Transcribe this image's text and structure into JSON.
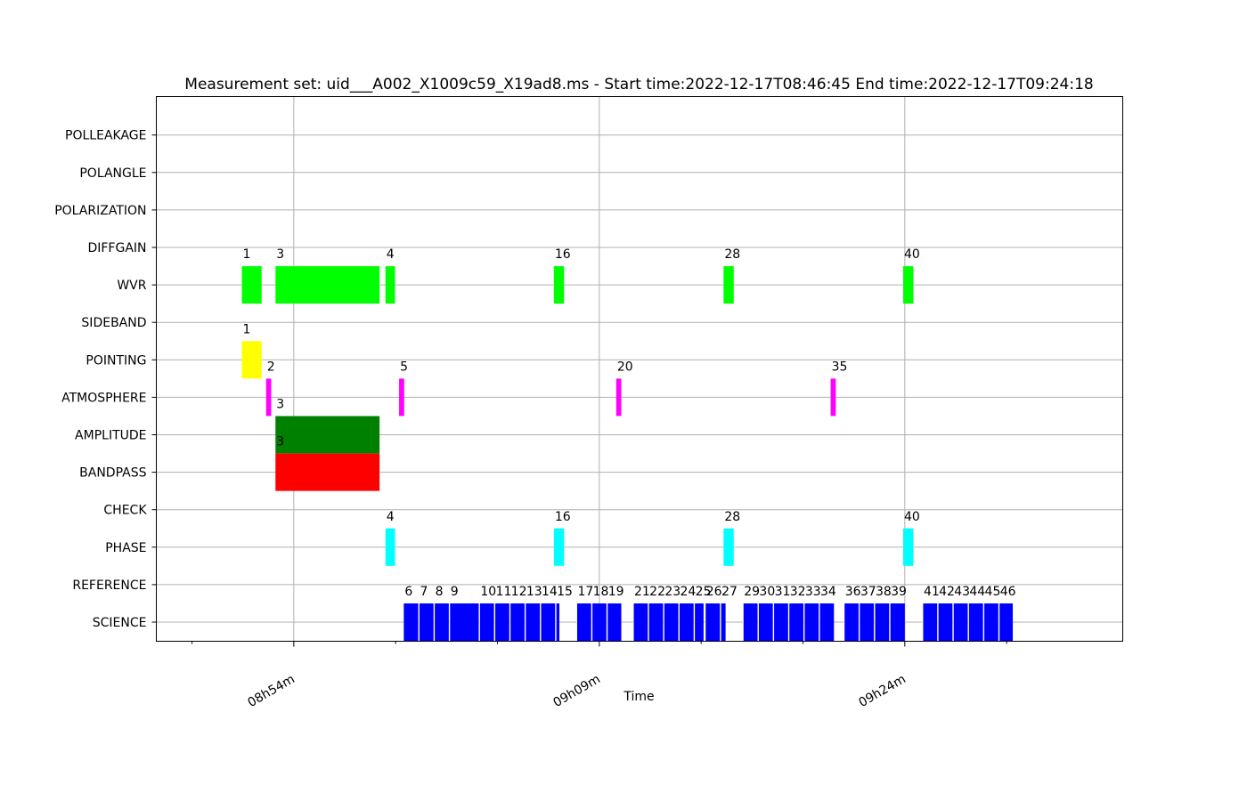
{
  "chart_data": {
    "type": "timeline",
    "title": "Measurement set: uid___A002_X1009c59_X19ad8.ms - Start time:2022-12-17T08:46:45 End time:2022-12-17T09:24:18",
    "xlabel": "Time",
    "ylabel": "",
    "grid": true,
    "x_ticks_minutes": [
      54,
      69,
      84
    ],
    "x_tick_labels": [
      "08h54m",
      "09h09m",
      "09h24m"
    ],
    "x_minor_ticks_minutes": [
      49,
      59,
      64,
      74,
      79,
      89
    ],
    "categories": [
      "SCIENCE",
      "REFERENCE",
      "PHASE",
      "CHECK",
      "BANDPASS",
      "AMPLITUDE",
      "ATMOSPHERE",
      "POINTING",
      "SIDEBAND",
      "WVR",
      "DIFFGAIN",
      "POLARIZATION",
      "POLANGLE",
      "POLLEAKAGE"
    ],
    "colors": {
      "WVR": "#00ff00",
      "POINTING": "#ffff00",
      "ATMOSPHERE": "#ff00ff",
      "AMPLITUDE": "#008000",
      "BANDPASS": "#ff0000",
      "PHASE": "#00ffff",
      "SCIENCE": "#0000ff"
    },
    "intervals": [
      {
        "intent": "WVR",
        "label": "1",
        "start": 51.45,
        "end": 52.42
      },
      {
        "intent": "WVR",
        "label": "3",
        "start": 53.1,
        "end": 58.21
      },
      {
        "intent": "WVR",
        "label": "4",
        "start": 58.5,
        "end": 58.97
      },
      {
        "intent": "WVR",
        "label": "16",
        "start": 66.77,
        "end": 67.27
      },
      {
        "intent": "WVR",
        "label": "28",
        "start": 75.1,
        "end": 75.6
      },
      {
        "intent": "WVR",
        "label": "40",
        "start": 83.92,
        "end": 84.42
      },
      {
        "intent": "POINTING",
        "label": "1",
        "start": 51.45,
        "end": 52.42
      },
      {
        "intent": "ATMOSPHERE",
        "label": "2",
        "start": 52.64,
        "end": 52.89
      },
      {
        "intent": "ATMOSPHERE",
        "label": "5",
        "start": 59.17,
        "end": 59.42
      },
      {
        "intent": "ATMOSPHERE",
        "label": "20",
        "start": 69.83,
        "end": 70.08
      },
      {
        "intent": "ATMOSPHERE",
        "label": "35",
        "start": 80.36,
        "end": 80.61
      },
      {
        "intent": "AMPLITUDE",
        "label": "3",
        "start": 53.1,
        "end": 58.21
      },
      {
        "intent": "BANDPASS",
        "label": "3",
        "start": 53.1,
        "end": 58.21
      },
      {
        "intent": "PHASE",
        "label": "4",
        "start": 58.5,
        "end": 58.97
      },
      {
        "intent": "PHASE",
        "label": "16",
        "start": 66.77,
        "end": 67.27
      },
      {
        "intent": "PHASE",
        "label": "28",
        "start": 75.1,
        "end": 75.6
      },
      {
        "intent": "PHASE",
        "label": "40",
        "start": 83.92,
        "end": 84.42
      },
      {
        "intent": "SCIENCE",
        "label": "6",
        "start": 59.4,
        "end": 60.11
      },
      {
        "intent": "SCIENCE",
        "label": "7",
        "start": 60.15,
        "end": 60.86
      },
      {
        "intent": "SCIENCE",
        "label": "8",
        "start": 60.9,
        "end": 61.61
      },
      {
        "intent": "SCIENCE",
        "label": "9",
        "start": 61.65,
        "end": 63.08
      },
      {
        "intent": "SCIENCE",
        "label": "10",
        "start": 63.12,
        "end": 63.83
      },
      {
        "intent": "SCIENCE",
        "label": "11",
        "start": 63.87,
        "end": 64.58
      },
      {
        "intent": "SCIENCE",
        "label": "12",
        "start": 64.62,
        "end": 65.33
      },
      {
        "intent": "SCIENCE",
        "label": "13",
        "start": 65.37,
        "end": 66.08
      },
      {
        "intent": "SCIENCE",
        "label": "14",
        "start": 66.12,
        "end": 66.83
      },
      {
        "intent": "SCIENCE",
        "label": "15",
        "start": 66.87,
        "end": 67.04
      },
      {
        "intent": "SCIENCE",
        "label": "17",
        "start": 67.89,
        "end": 68.6
      },
      {
        "intent": "SCIENCE",
        "label": "18",
        "start": 68.64,
        "end": 69.35
      },
      {
        "intent": "SCIENCE",
        "label": "19",
        "start": 69.39,
        "end": 70.08
      },
      {
        "intent": "SCIENCE",
        "label": "21",
        "start": 70.67,
        "end": 71.38
      },
      {
        "intent": "SCIENCE",
        "label": "22",
        "start": 71.42,
        "end": 72.13
      },
      {
        "intent": "SCIENCE",
        "label": "23",
        "start": 72.17,
        "end": 72.88
      },
      {
        "intent": "SCIENCE",
        "label": "24",
        "start": 72.92,
        "end": 73.63
      },
      {
        "intent": "SCIENCE",
        "label": "25",
        "start": 73.67,
        "end": 74.12
      },
      {
        "intent": "SCIENCE",
        "label": "26",
        "start": 74.2,
        "end": 74.92
      },
      {
        "intent": "SCIENCE",
        "label": "27",
        "start": 74.96,
        "end": 75.2
      },
      {
        "intent": "SCIENCE",
        "label": "29",
        "start": 76.06,
        "end": 76.77
      },
      {
        "intent": "SCIENCE",
        "label": "30",
        "start": 76.81,
        "end": 77.52
      },
      {
        "intent": "SCIENCE",
        "label": "31",
        "start": 77.56,
        "end": 78.27
      },
      {
        "intent": "SCIENCE",
        "label": "32",
        "start": 78.31,
        "end": 79.02
      },
      {
        "intent": "SCIENCE",
        "label": "33",
        "start": 79.06,
        "end": 79.77
      },
      {
        "intent": "SCIENCE",
        "label": "34",
        "start": 79.81,
        "end": 80.52
      },
      {
        "intent": "SCIENCE",
        "label": "36",
        "start": 81.02,
        "end": 81.73
      },
      {
        "intent": "SCIENCE",
        "label": "37",
        "start": 81.77,
        "end": 82.48
      },
      {
        "intent": "SCIENCE",
        "label": "38",
        "start": 82.52,
        "end": 83.23
      },
      {
        "intent": "SCIENCE",
        "label": "39",
        "start": 83.27,
        "end": 84.0
      },
      {
        "intent": "SCIENCE",
        "label": "41",
        "start": 84.88,
        "end": 85.59
      },
      {
        "intent": "SCIENCE",
        "label": "42",
        "start": 85.63,
        "end": 86.34
      },
      {
        "intent": "SCIENCE",
        "label": "43",
        "start": 86.38,
        "end": 87.09
      },
      {
        "intent": "SCIENCE",
        "label": "44",
        "start": 87.13,
        "end": 87.84
      },
      {
        "intent": "SCIENCE",
        "label": "45",
        "start": 87.88,
        "end": 88.59
      },
      {
        "intent": "SCIENCE",
        "label": "46",
        "start": 88.63,
        "end": 89.3
      }
    ]
  }
}
